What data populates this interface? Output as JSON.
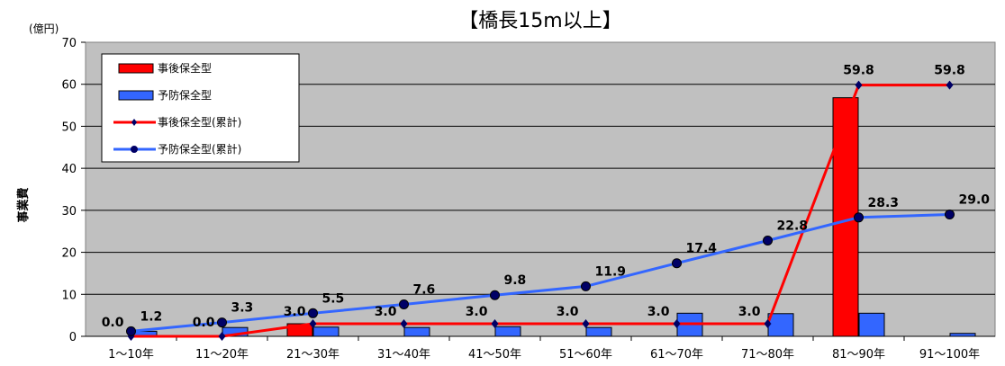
{
  "chart_data": {
    "type": "bar",
    "title": "【橋長15m以上】",
    "unit_label": "(億円)",
    "ylabel": "事業費",
    "xlabel": "",
    "ylim": [
      0,
      70
    ],
    "yticks": [
      0,
      10,
      20,
      30,
      40,
      50,
      60,
      70
    ],
    "grid": true,
    "legend_position": "top-left",
    "categories": [
      "1～10年",
      "11～20年",
      "21～30年",
      "31～40年",
      "41～50年",
      "51～60年",
      "61～70年",
      "71～80年",
      "81～90年",
      "91～100年"
    ],
    "series": [
      {
        "name": "事後保全型",
        "kind": "bar",
        "color": "#ff0000",
        "values": [
          0,
          0,
          3.0,
          0,
          0,
          0,
          0,
          0,
          56.8,
          0
        ]
      },
      {
        "name": "予防保全型",
        "kind": "bar",
        "color": "#3366ff",
        "values": [
          1.2,
          2.1,
          2.2,
          2.1,
          2.3,
          2.1,
          5.5,
          5.4,
          5.5,
          0.7
        ]
      },
      {
        "name": "事後保全型(累計)",
        "kind": "line",
        "color": "#ff0000",
        "marker": "diamond",
        "values": [
          0.0,
          0.0,
          3.0,
          3.0,
          3.0,
          3.0,
          3.0,
          3.0,
          59.8,
          59.8
        ],
        "data_labels": [
          "0.0",
          "0.0",
          "3.0",
          "3.0",
          "3.0",
          "3.0",
          "3.0",
          "3.0",
          "59.8",
          ""
        ]
      },
      {
        "name": "予防保全型(累計)",
        "kind": "line",
        "color": "#3366ff",
        "marker": "circle",
        "values": [
          1.2,
          3.3,
          5.5,
          7.6,
          9.8,
          11.9,
          17.4,
          22.8,
          28.3,
          29.0
        ],
        "data_labels": [
          "1.2",
          "3.3",
          "5.5",
          "7.6",
          "9.8",
          "11.9",
          "17.4",
          "22.8",
          "28.3",
          "29.0"
        ]
      }
    ],
    "extra_labels": [
      "59.8"
    ]
  }
}
